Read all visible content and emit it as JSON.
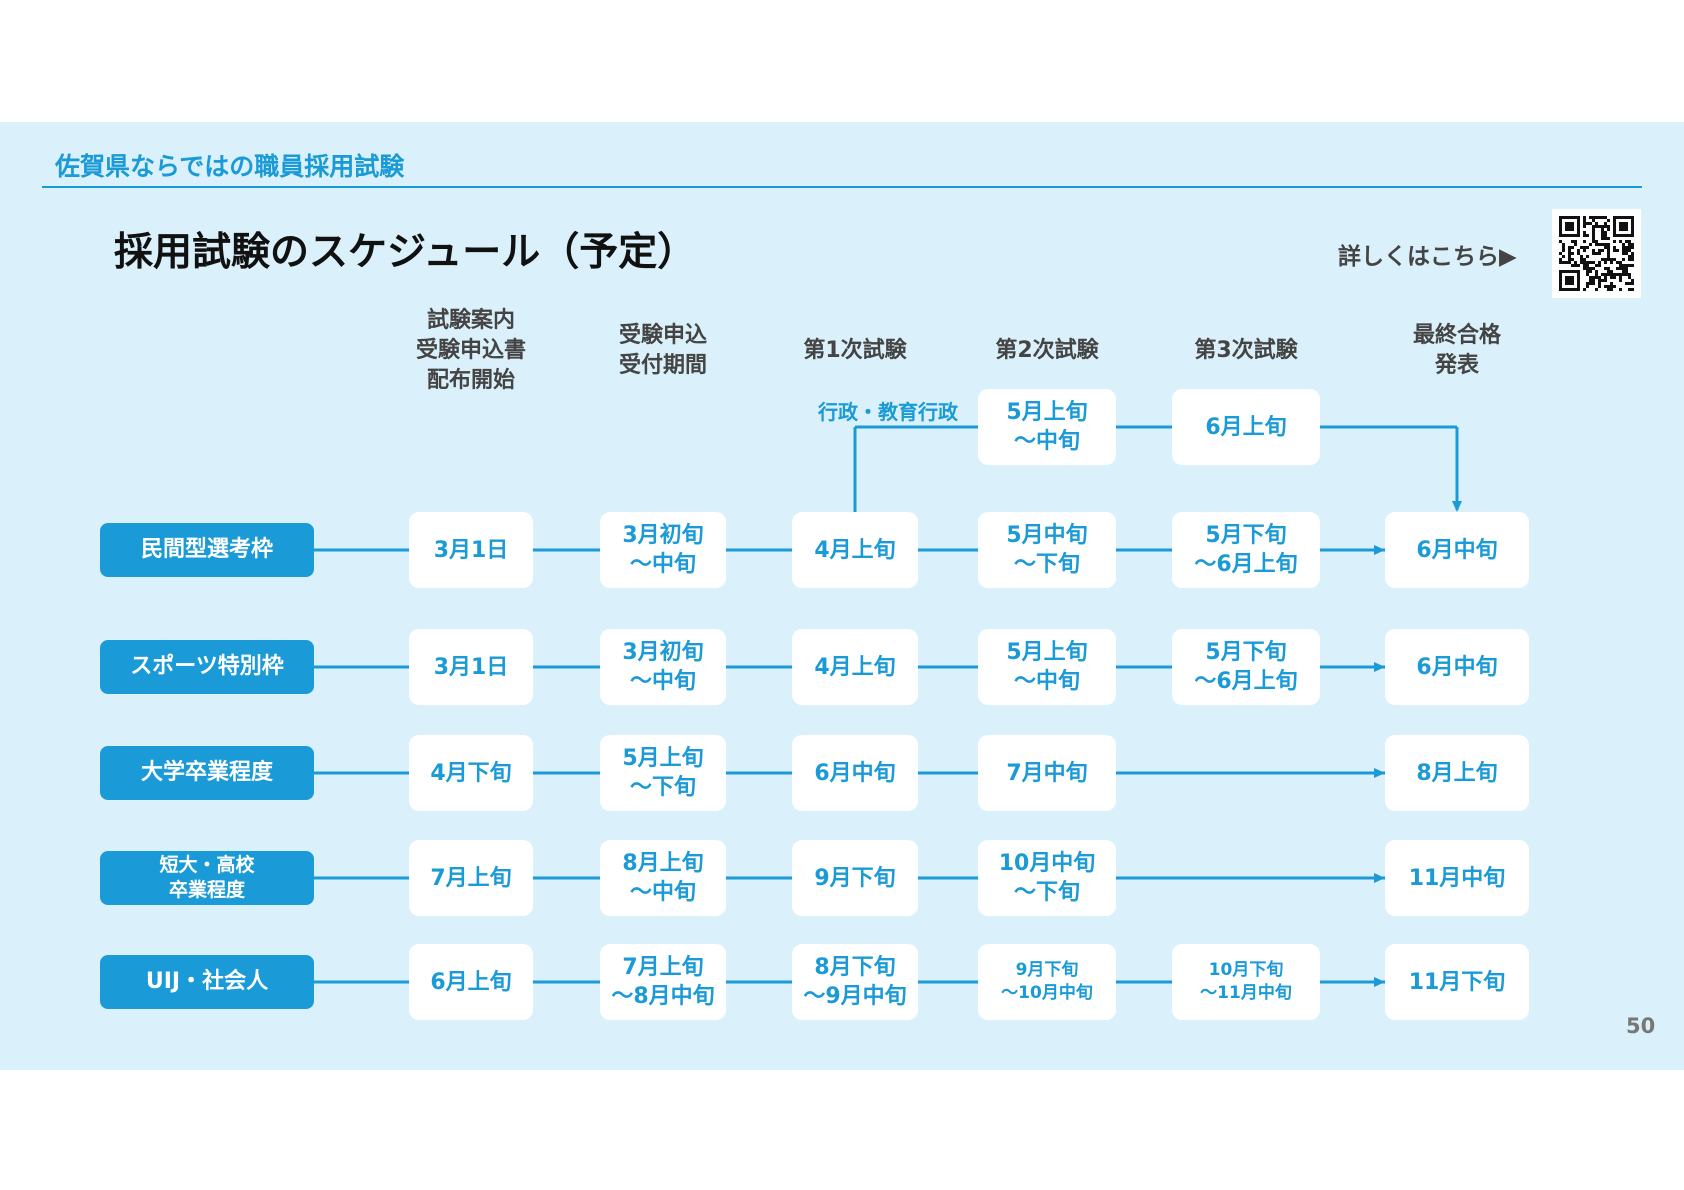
{
  "section_title": "佐賀県ならではの職員採用試験",
  "main_title": "採用試験のスケジュール（予定）",
  "details_link": "詳しくはこちら▶",
  "qr_icon": "qr-code-icon",
  "columns": [
    "試験案内\n受験申込書\n配布開始",
    "受験申込\n受付期間",
    "第1次試験",
    "第2次試験",
    "第3次試験",
    "最終合格\n発表"
  ],
  "gyosei_branch": {
    "label": "行政・教育行政",
    "second": "5月上旬\n～中旬",
    "third": "6月上旬"
  },
  "rows": [
    {
      "label": "民間型選考枠",
      "cells": [
        "3月1日",
        "3月初旬\n～中旬",
        "4月上旬",
        "5月中旬\n～下旬",
        "5月下旬\n～6月上旬",
        "6月中旬"
      ]
    },
    {
      "label": "スポーツ特別枠",
      "cells": [
        "3月1日",
        "3月初旬\n～中旬",
        "4月上旬",
        "5月上旬\n～中旬",
        "5月下旬\n～6月上旬",
        "6月中旬"
      ]
    },
    {
      "label": "大学卒業程度",
      "cells": [
        "4月下旬",
        "5月上旬\n～下旬",
        "6月中旬",
        "7月中旬",
        "",
        "8月上旬"
      ]
    },
    {
      "label": "短大・高校\n卒業程度",
      "cells": [
        "7月上旬",
        "8月上旬\n～中旬",
        "9月下旬",
        "10月中旬\n～下旬",
        "",
        "11月中旬"
      ]
    },
    {
      "label": "UIJ・社会人",
      "cells": [
        "6月上旬",
        "7月上旬\n～8月中旬",
        "8月下旬\n～9月中旬",
        "9月下旬\n～10月中旬",
        "10月下旬\n～11月中旬",
        "11月下旬"
      ]
    }
  ],
  "page_number": "50",
  "colors": {
    "accent": "#1a9ad6",
    "background": "#daf0fa",
    "box": "#ffffff",
    "heading": "#111111"
  }
}
